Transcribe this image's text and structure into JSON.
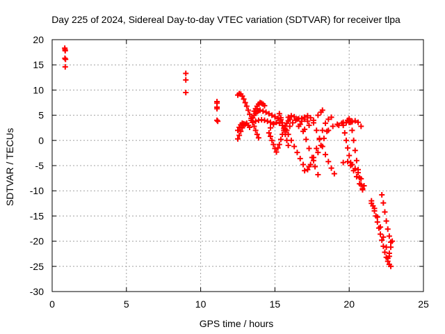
{
  "chart_data": {
    "type": "scatter",
    "title": "Day 225 of 2024, Sidereal Day-to-day VTEC variation (SDTVAR) for receiver tlpa",
    "xlabel": "GPS time / hours",
    "ylabel": "SDTVAR / TECUs",
    "xlim": [
      0,
      25
    ],
    "ylim": [
      -30,
      20
    ],
    "xticks": [
      0,
      5,
      10,
      15,
      20,
      25
    ],
    "yticks": [
      -30,
      -25,
      -20,
      -15,
      -10,
      -5,
      0,
      5,
      10,
      15,
      20
    ],
    "grid": true,
    "marker": "+",
    "series": [
      {
        "name": "SDTVAR",
        "color": "#ff0000",
        "points": [
          [
            0.85,
            18.3
          ],
          [
            0.87,
            18.0
          ],
          [
            0.88,
            17.8
          ],
          [
            0.86,
            16.3
          ],
          [
            0.9,
            16.1
          ],
          [
            0.88,
            14.6
          ],
          [
            9.0,
            13.3
          ],
          [
            9.0,
            12.0
          ],
          [
            9.0,
            9.5
          ],
          [
            11.1,
            7.7
          ],
          [
            11.1,
            7.4
          ],
          [
            11.1,
            6.6
          ],
          [
            11.1,
            6.3
          ],
          [
            11.1,
            4.0
          ],
          [
            11.15,
            3.8
          ],
          [
            12.5,
            9.0
          ],
          [
            12.6,
            9.3
          ],
          [
            12.7,
            9.2
          ],
          [
            12.8,
            8.8
          ],
          [
            12.9,
            8.2
          ],
          [
            13.0,
            7.5
          ],
          [
            13.1,
            6.8
          ],
          [
            13.2,
            6.0
          ],
          [
            13.3,
            5.2
          ],
          [
            13.4,
            4.4
          ],
          [
            13.5,
            3.6
          ],
          [
            13.6,
            2.8
          ],
          [
            13.7,
            2.0
          ],
          [
            13.8,
            1.2
          ],
          [
            13.9,
            0.5
          ],
          [
            12.5,
            0.3
          ],
          [
            12.6,
            1.0
          ],
          [
            12.7,
            1.8
          ],
          [
            12.8,
            2.5
          ],
          [
            12.9,
            3.0
          ],
          [
            13.0,
            3.2
          ],
          [
            13.1,
            3.4
          ],
          [
            13.2,
            3.0
          ],
          [
            13.3,
            2.6
          ],
          [
            12.5,
            2.0
          ],
          [
            12.6,
            2.6
          ],
          [
            12.7,
            3.1
          ],
          [
            12.8,
            3.4
          ],
          [
            12.9,
            3.3
          ],
          [
            13.6,
            5.8
          ],
          [
            13.7,
            6.3
          ],
          [
            13.8,
            6.8
          ],
          [
            13.9,
            7.2
          ],
          [
            14.0,
            7.5
          ],
          [
            14.1,
            7.4
          ],
          [
            14.2,
            7.2
          ],
          [
            14.3,
            6.9
          ],
          [
            13.4,
            4.0
          ],
          [
            13.5,
            4.5
          ],
          [
            13.6,
            5.0
          ],
          [
            13.7,
            5.4
          ],
          [
            13.8,
            5.7
          ],
          [
            13.9,
            5.9
          ],
          [
            14.0,
            6.0
          ],
          [
            14.2,
            5.8
          ],
          [
            14.4,
            5.6
          ],
          [
            14.6,
            5.3
          ],
          [
            14.8,
            5.0
          ],
          [
            15.0,
            4.7
          ],
          [
            15.2,
            4.4
          ],
          [
            15.4,
            4.1
          ],
          [
            13.5,
            3.6
          ],
          [
            13.7,
            3.8
          ],
          [
            13.9,
            4.0
          ],
          [
            14.1,
            4.1
          ],
          [
            14.3,
            4.0
          ],
          [
            14.5,
            3.8
          ],
          [
            14.7,
            3.6
          ],
          [
            14.9,
            3.3
          ],
          [
            14.6,
            1.5
          ],
          [
            14.7,
            0.8
          ],
          [
            14.8,
            0.0
          ],
          [
            14.9,
            -0.8
          ],
          [
            15.0,
            -1.6
          ],
          [
            15.1,
            -2.3
          ],
          [
            14.7,
            2.5
          ],
          [
            14.9,
            3.2
          ],
          [
            15.1,
            3.6
          ],
          [
            15.3,
            3.4
          ],
          [
            15.5,
            3.0
          ],
          [
            15.7,
            2.2
          ],
          [
            15.9,
            1.2
          ],
          [
            16.1,
            0.0
          ],
          [
            16.3,
            -1.2
          ],
          [
            16.5,
            -2.4
          ],
          [
            16.7,
            -3.6
          ],
          [
            16.9,
            -4.8
          ],
          [
            15.3,
            5.3
          ],
          [
            15.4,
            4.5
          ],
          [
            15.5,
            3.5
          ],
          [
            15.6,
            2.4
          ],
          [
            15.7,
            1.2
          ],
          [
            15.8,
            0.0
          ],
          [
            15.9,
            -1.0
          ],
          [
            15.2,
            -1.5
          ],
          [
            15.3,
            -0.8
          ],
          [
            15.4,
            0.2
          ],
          [
            15.5,
            1.2
          ],
          [
            15.6,
            2.0
          ],
          [
            15.7,
            2.8
          ],
          [
            15.8,
            3.4
          ],
          [
            15.9,
            3.9
          ],
          [
            16.0,
            4.2
          ],
          [
            15.8,
            2.0
          ],
          [
            16.0,
            2.8
          ],
          [
            16.2,
            3.5
          ],
          [
            16.4,
            4.0
          ],
          [
            16.6,
            4.3
          ],
          [
            16.8,
            4.4
          ],
          [
            17.0,
            4.2
          ],
          [
            17.2,
            3.8
          ],
          [
            15.9,
            4.6
          ],
          [
            16.1,
            4.9
          ],
          [
            16.3,
            4.7
          ],
          [
            16.5,
            4.2
          ],
          [
            16.7,
            3.2
          ],
          [
            16.9,
            1.8
          ],
          [
            17.1,
            0.2
          ],
          [
            17.3,
            -1.6
          ],
          [
            17.5,
            -3.4
          ],
          [
            17.7,
            -5.2
          ],
          [
            17.9,
            -6.8
          ],
          [
            16.6,
            2.8
          ],
          [
            16.8,
            3.8
          ],
          [
            17.0,
            4.6
          ],
          [
            17.2,
            4.9
          ],
          [
            17.4,
            4.5
          ],
          [
            17.6,
            3.5
          ],
          [
            17.8,
            2.0
          ],
          [
            18.0,
            0.4
          ],
          [
            18.2,
            -1.2
          ],
          [
            18.4,
            -2.8
          ],
          [
            18.6,
            -4.2
          ],
          [
            18.8,
            -5.5
          ],
          [
            19.0,
            -6.6
          ],
          [
            17.2,
            -5.8
          ],
          [
            17.4,
            -4.8
          ],
          [
            17.6,
            -3.4
          ],
          [
            17.8,
            -1.6
          ],
          [
            18.0,
            0.2
          ],
          [
            18.2,
            2.0
          ],
          [
            18.4,
            3.4
          ],
          [
            18.6,
            4.2
          ],
          [
            18.8,
            4.6
          ],
          [
            17.0,
            -6.0
          ],
          [
            17.3,
            -5.2
          ],
          [
            17.6,
            -4.0
          ],
          [
            17.9,
            -2.4
          ],
          [
            18.1,
            -1.0
          ],
          [
            18.3,
            0.4
          ],
          [
            18.5,
            1.8
          ],
          [
            17.0,
            2.2
          ],
          [
            17.3,
            3.0
          ],
          [
            17.6,
            4.0
          ],
          [
            17.9,
            5.0
          ],
          [
            18.1,
            5.6
          ],
          [
            18.2,
            6.0
          ],
          [
            18.6,
            2.0
          ],
          [
            18.9,
            2.8
          ],
          [
            19.2,
            3.2
          ],
          [
            19.5,
            3.4
          ],
          [
            19.8,
            3.5
          ],
          [
            20.0,
            3.6
          ],
          [
            20.2,
            3.7
          ],
          [
            19.3,
            3.0
          ],
          [
            19.6,
            3.6
          ],
          [
            19.9,
            4.0
          ],
          [
            20.0,
            4.3
          ],
          [
            20.1,
            3.6
          ],
          [
            20.2,
            2.0
          ],
          [
            20.3,
            0.0
          ],
          [
            20.4,
            -2.0
          ],
          [
            20.5,
            -4.0
          ],
          [
            20.6,
            -5.8
          ],
          [
            20.7,
            -7.4
          ],
          [
            20.8,
            -8.8
          ],
          [
            20.9,
            -9.8
          ],
          [
            20.0,
            3.6
          ],
          [
            20.2,
            3.8
          ],
          [
            20.4,
            3.9
          ],
          [
            20.6,
            3.6
          ],
          [
            20.8,
            2.8
          ],
          [
            19.6,
            3.0
          ],
          [
            19.7,
            1.5
          ],
          [
            19.8,
            0.0
          ],
          [
            19.9,
            -1.5
          ],
          [
            20.0,
            -3.0
          ],
          [
            20.1,
            -4.4
          ],
          [
            19.6,
            -4.4
          ],
          [
            19.9,
            -4.2
          ],
          [
            20.2,
            -4.8
          ],
          [
            20.4,
            -5.6
          ],
          [
            20.6,
            -6.4
          ],
          [
            20.8,
            -7.6
          ],
          [
            21.0,
            -9.0
          ],
          [
            20.1,
            -5.0
          ],
          [
            20.3,
            -6.0
          ],
          [
            20.5,
            -7.2
          ],
          [
            20.7,
            -8.6
          ],
          [
            20.9,
            -9.6
          ],
          [
            21.5,
            -12.5
          ],
          [
            21.6,
            -13.0
          ],
          [
            21.7,
            -14.0
          ],
          [
            21.8,
            -15.0
          ],
          [
            21.9,
            -16.2
          ],
          [
            22.0,
            -17.4
          ],
          [
            22.1,
            -18.6
          ],
          [
            22.2,
            -19.8
          ],
          [
            22.3,
            -21.0
          ],
          [
            22.4,
            -22.2
          ],
          [
            22.5,
            -23.2
          ],
          [
            22.6,
            -24.0
          ],
          [
            22.7,
            -24.6
          ],
          [
            22.8,
            -25.0
          ],
          [
            21.5,
            -12.0
          ],
          [
            21.7,
            -13.5
          ],
          [
            21.9,
            -15.2
          ],
          [
            22.1,
            -17.2
          ],
          [
            22.3,
            -19.2
          ],
          [
            22.5,
            -21.2
          ],
          [
            22.7,
            -23.0
          ],
          [
            22.2,
            -10.8
          ],
          [
            22.3,
            -12.4
          ],
          [
            22.4,
            -14.2
          ],
          [
            22.5,
            -16.0
          ],
          [
            22.6,
            -17.6
          ],
          [
            22.7,
            -19.0
          ],
          [
            22.8,
            -20.2
          ],
          [
            22.9,
            -20.0
          ],
          [
            22.8,
            -21.2
          ],
          [
            22.7,
            -22.4
          ],
          [
            22.6,
            -23.4
          ]
        ]
      }
    ]
  }
}
